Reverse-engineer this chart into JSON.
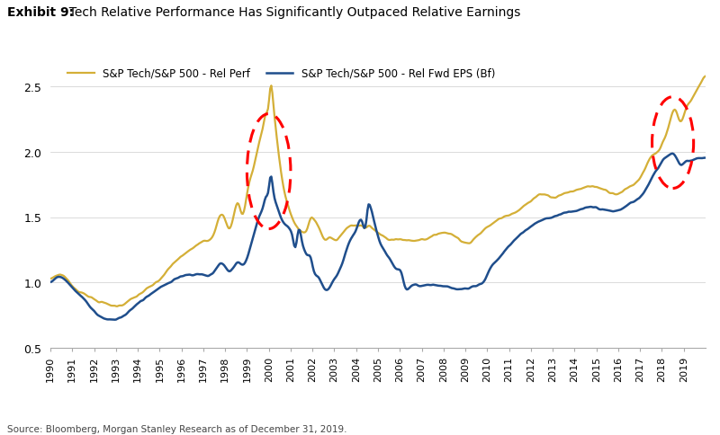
{
  "title_bold": "Exhibit 9:",
  "title_regular": "  Tech Relative Performance Has Significantly Outpaced Relative Earnings",
  "legend1": "S&P Tech/S&P 500 - Rel Perf",
  "legend2": "S&P Tech/S&P 500 - Rel Fwd EPS (Bf)",
  "color_perf": "#D4AF37",
  "color_eps": "#1F4E8C",
  "source": "Source: Bloomberg, Morgan Stanley Research as of December 31, 2019.",
  "ylim": [
    0.5,
    2.7
  ],
  "yticks": [
    0.5,
    1.0,
    1.5,
    2.0,
    2.5
  ],
  "background": "#FFFFFF",
  "perf_points": [
    [
      1990.0,
      1.02
    ],
    [
      1990.4,
      1.06
    ],
    [
      1990.8,
      1.02
    ],
    [
      1991.0,
      0.97
    ],
    [
      1991.5,
      0.92
    ],
    [
      1992.0,
      0.87
    ],
    [
      1992.5,
      0.84
    ],
    [
      1993.0,
      0.82
    ],
    [
      1993.3,
      0.83
    ],
    [
      1993.6,
      0.86
    ],
    [
      1994.0,
      0.9
    ],
    [
      1994.5,
      0.96
    ],
    [
      1995.0,
      1.02
    ],
    [
      1995.5,
      1.12
    ],
    [
      1996.0,
      1.2
    ],
    [
      1996.5,
      1.26
    ],
    [
      1997.0,
      1.32
    ],
    [
      1997.5,
      1.38
    ],
    [
      1997.8,
      1.52
    ],
    [
      1998.0,
      1.48
    ],
    [
      1998.2,
      1.4
    ],
    [
      1998.4,
      1.52
    ],
    [
      1998.6,
      1.62
    ],
    [
      1998.8,
      1.5
    ],
    [
      1999.0,
      1.68
    ],
    [
      1999.2,
      1.82
    ],
    [
      1999.4,
      1.95
    ],
    [
      1999.6,
      2.1
    ],
    [
      1999.8,
      2.25
    ],
    [
      1999.9,
      2.32
    ],
    [
      2000.0,
      2.3
    ],
    [
      2000.08,
      2.62
    ],
    [
      2000.15,
      2.5
    ],
    [
      2000.3,
      2.2
    ],
    [
      2000.5,
      1.92
    ],
    [
      2000.7,
      1.7
    ],
    [
      2000.9,
      1.58
    ],
    [
      2001.0,
      1.52
    ],
    [
      2001.2,
      1.45
    ],
    [
      2001.4,
      1.4
    ],
    [
      2001.6,
      1.38
    ],
    [
      2001.8,
      1.42
    ],
    [
      2001.9,
      1.5
    ],
    [
      2002.0,
      1.5
    ],
    [
      2002.2,
      1.45
    ],
    [
      2002.4,
      1.38
    ],
    [
      2002.6,
      1.32
    ],
    [
      2002.8,
      1.35
    ],
    [
      2003.0,
      1.32
    ],
    [
      2003.3,
      1.36
    ],
    [
      2003.5,
      1.4
    ],
    [
      2003.7,
      1.43
    ],
    [
      2004.0,
      1.44
    ],
    [
      2004.3,
      1.43
    ],
    [
      2004.5,
      1.42
    ],
    [
      2004.6,
      1.44
    ],
    [
      2004.7,
      1.42
    ],
    [
      2005.0,
      1.38
    ],
    [
      2005.5,
      1.33
    ],
    [
      2006.0,
      1.33
    ],
    [
      2006.5,
      1.32
    ],
    [
      2007.0,
      1.33
    ],
    [
      2007.5,
      1.35
    ],
    [
      2007.8,
      1.38
    ],
    [
      2008.0,
      1.38
    ],
    [
      2008.5,
      1.36
    ],
    [
      2009.0,
      1.3
    ],
    [
      2009.5,
      1.35
    ],
    [
      2010.0,
      1.42
    ],
    [
      2010.5,
      1.48
    ],
    [
      2011.0,
      1.52
    ],
    [
      2011.5,
      1.56
    ],
    [
      2011.8,
      1.6
    ],
    [
      2012.0,
      1.62
    ],
    [
      2012.5,
      1.68
    ],
    [
      2013.0,
      1.65
    ],
    [
      2013.5,
      1.68
    ],
    [
      2014.0,
      1.7
    ],
    [
      2014.5,
      1.73
    ],
    [
      2015.0,
      1.73
    ],
    [
      2015.5,
      1.7
    ],
    [
      2016.0,
      1.68
    ],
    [
      2016.5,
      1.73
    ],
    [
      2017.0,
      1.8
    ],
    [
      2017.3,
      1.9
    ],
    [
      2017.6,
      1.98
    ],
    [
      2017.9,
      2.02
    ],
    [
      2018.0,
      2.06
    ],
    [
      2018.3,
      2.18
    ],
    [
      2018.6,
      2.33
    ],
    [
      2018.9,
      2.22
    ],
    [
      2019.0,
      2.28
    ],
    [
      2019.3,
      2.38
    ],
    [
      2019.6,
      2.47
    ],
    [
      2019.9,
      2.56
    ],
    [
      2019.99,
      2.58
    ]
  ],
  "eps_points": [
    [
      1990.0,
      1.0
    ],
    [
      1990.4,
      1.04
    ],
    [
      1990.8,
      1.0
    ],
    [
      1991.0,
      0.96
    ],
    [
      1991.5,
      0.88
    ],
    [
      1992.0,
      0.78
    ],
    [
      1992.5,
      0.72
    ],
    [
      1993.0,
      0.72
    ],
    [
      1993.3,
      0.74
    ],
    [
      1993.6,
      0.78
    ],
    [
      1994.0,
      0.84
    ],
    [
      1994.5,
      0.9
    ],
    [
      1995.0,
      0.96
    ],
    [
      1995.5,
      1.0
    ],
    [
      1996.0,
      1.05
    ],
    [
      1996.5,
      1.06
    ],
    [
      1997.0,
      1.06
    ],
    [
      1997.5,
      1.08
    ],
    [
      1997.8,
      1.15
    ],
    [
      1998.0,
      1.12
    ],
    [
      1998.2,
      1.08
    ],
    [
      1998.4,
      1.12
    ],
    [
      1998.6,
      1.16
    ],
    [
      1998.8,
      1.13
    ],
    [
      1999.0,
      1.18
    ],
    [
      1999.2,
      1.3
    ],
    [
      1999.4,
      1.42
    ],
    [
      1999.6,
      1.52
    ],
    [
      1999.8,
      1.62
    ],
    [
      1999.9,
      1.68
    ],
    [
      2000.0,
      1.66
    ],
    [
      2000.08,
      1.92
    ],
    [
      2000.15,
      1.78
    ],
    [
      2000.3,
      1.62
    ],
    [
      2000.5,
      1.52
    ],
    [
      2000.7,
      1.45
    ],
    [
      2000.9,
      1.42
    ],
    [
      2001.0,
      1.4
    ],
    [
      2001.1,
      1.36
    ],
    [
      2001.15,
      1.28
    ],
    [
      2001.2,
      1.22
    ],
    [
      2001.3,
      1.35
    ],
    [
      2001.4,
      1.45
    ],
    [
      2001.45,
      1.4
    ],
    [
      2001.5,
      1.32
    ],
    [
      2001.6,
      1.26
    ],
    [
      2001.7,
      1.22
    ],
    [
      2001.8,
      1.2
    ],
    [
      2001.9,
      1.22
    ],
    [
      2002.0,
      1.12
    ],
    [
      2002.2,
      1.05
    ],
    [
      2002.4,
      1.0
    ],
    [
      2002.5,
      0.96
    ],
    [
      2002.7,
      0.94
    ],
    [
      2002.9,
      1.0
    ],
    [
      2003.0,
      1.02
    ],
    [
      2003.3,
      1.12
    ],
    [
      2003.5,
      1.22
    ],
    [
      2003.7,
      1.32
    ],
    [
      2004.0,
      1.4
    ],
    [
      2004.3,
      1.46
    ],
    [
      2004.5,
      1.52
    ],
    [
      2004.55,
      1.68
    ],
    [
      2004.6,
      1.62
    ],
    [
      2004.65,
      1.55
    ],
    [
      2004.7,
      1.58
    ],
    [
      2004.75,
      1.52
    ],
    [
      2004.8,
      1.48
    ],
    [
      2005.0,
      1.35
    ],
    [
      2005.3,
      1.24
    ],
    [
      2005.6,
      1.16
    ],
    [
      2005.9,
      1.1
    ],
    [
      2006.0,
      1.1
    ],
    [
      2006.1,
      1.06
    ],
    [
      2006.2,
      0.98
    ],
    [
      2006.5,
      0.97
    ],
    [
      2007.0,
      0.97
    ],
    [
      2007.3,
      0.98
    ],
    [
      2007.6,
      0.98
    ],
    [
      2007.9,
      0.97
    ],
    [
      2008.0,
      0.97
    ],
    [
      2008.3,
      0.96
    ],
    [
      2008.6,
      0.95
    ],
    [
      2008.9,
      0.95
    ],
    [
      2009.0,
      0.95
    ],
    [
      2009.3,
      0.96
    ],
    [
      2009.6,
      0.98
    ],
    [
      2009.9,
      1.02
    ],
    [
      2010.0,
      1.06
    ],
    [
      2010.5,
      1.18
    ],
    [
      2011.0,
      1.28
    ],
    [
      2011.5,
      1.36
    ],
    [
      2011.8,
      1.4
    ],
    [
      2012.0,
      1.43
    ],
    [
      2012.5,
      1.48
    ],
    [
      2013.0,
      1.5
    ],
    [
      2013.5,
      1.53
    ],
    [
      2014.0,
      1.55
    ],
    [
      2014.5,
      1.57
    ],
    [
      2015.0,
      1.57
    ],
    [
      2015.5,
      1.55
    ],
    [
      2016.0,
      1.55
    ],
    [
      2016.5,
      1.6
    ],
    [
      2017.0,
      1.65
    ],
    [
      2017.3,
      1.72
    ],
    [
      2017.6,
      1.82
    ],
    [
      2017.9,
      1.9
    ],
    [
      2018.0,
      1.93
    ],
    [
      2018.3,
      1.97
    ],
    [
      2018.6,
      1.98
    ],
    [
      2018.9,
      1.89
    ],
    [
      2019.0,
      1.91
    ],
    [
      2019.3,
      1.93
    ],
    [
      2019.6,
      1.95
    ],
    [
      2019.9,
      1.95
    ],
    [
      2019.99,
      1.95
    ]
  ]
}
